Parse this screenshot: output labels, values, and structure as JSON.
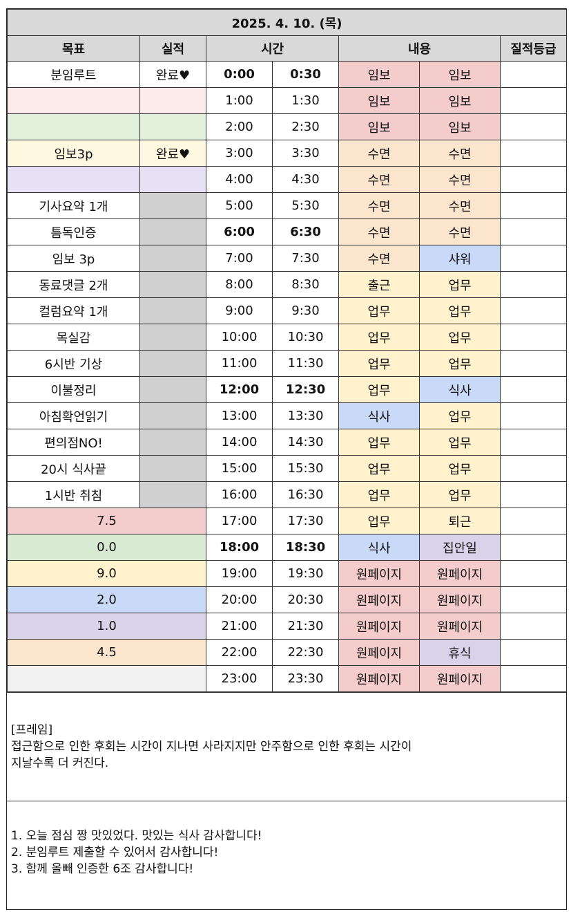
{
  "date": "2025. 4. 10. (목)",
  "headers": {
    "goal": "목표",
    "result": "실적",
    "time": "시간",
    "content": "내용",
    "grade": "질적등급"
  },
  "rows": [
    {
      "goal": "분임루트",
      "result": "완료♥",
      "t1": "0:00",
      "t2": "0:30",
      "c1": "임보",
      "c2": "임보"
    },
    {
      "goal": "",
      "result": "",
      "t1": "1:00",
      "t2": "1:30",
      "c1": "임보",
      "c2": "임보"
    },
    {
      "goal": "",
      "result": "",
      "t1": "2:00",
      "t2": "2:30",
      "c1": "임보",
      "c2": "임보"
    },
    {
      "goal": "임보3p",
      "result": "완료♥",
      "t1": "3:00",
      "t2": "3:30",
      "c1": "수면",
      "c2": "수면"
    },
    {
      "goal": "",
      "result": "",
      "t1": "4:00",
      "t2": "4:30",
      "c1": "수면",
      "c2": "수면"
    },
    {
      "goal": "기사요약 1개",
      "result": "",
      "t1": "5:00",
      "t2": "5:30",
      "c1": "수면",
      "c2": "수면"
    },
    {
      "goal": "틈독인증",
      "result": "",
      "t1": "6:00",
      "t2": "6:30",
      "c1": "수면",
      "c2": "수면"
    },
    {
      "goal": "임보 3p",
      "result": "",
      "t1": "7:00",
      "t2": "7:30",
      "c1": "수면",
      "c2": "샤워"
    },
    {
      "goal": "동료댓글 2개",
      "result": "",
      "t1": "8:00",
      "t2": "8:30",
      "c1": "출근",
      "c2": "업무"
    },
    {
      "goal": "컬럼요약 1개",
      "result": "",
      "t1": "9:00",
      "t2": "9:30",
      "c1": "업무",
      "c2": "업무"
    },
    {
      "goal": "목실감",
      "result": "",
      "t1": "10:00",
      "t2": "10:30",
      "c1": "업무",
      "c2": "업무"
    },
    {
      "goal": "6시반 기상",
      "result": "",
      "t1": "11:00",
      "t2": "11:30",
      "c1": "업무",
      "c2": "업무"
    },
    {
      "goal": "이불정리",
      "result": "",
      "t1": "12:00",
      "t2": "12:30",
      "c1": "업무",
      "c2": "식사"
    },
    {
      "goal": "아침확언읽기",
      "result": "",
      "t1": "13:00",
      "t2": "13:30",
      "c1": "식사",
      "c2": "업무"
    },
    {
      "goal": "편의점NO!",
      "result": "",
      "t1": "14:00",
      "t2": "14:30",
      "c1": "업무",
      "c2": "업무"
    },
    {
      "goal": "20시 식사끝",
      "result": "",
      "t1": "15:00",
      "t2": "15:30",
      "c1": "업무",
      "c2": "업무"
    },
    {
      "goal": "1시반 취침",
      "result": "",
      "t1": "16:00",
      "t2": "16:30",
      "c1": "업무",
      "c2": "업무"
    },
    {
      "summary": "7.5",
      "t1": "17:00",
      "t2": "17:30",
      "c1": "업무",
      "c2": "퇴근"
    },
    {
      "summary": "0.0",
      "t1": "18:00",
      "t2": "18:30",
      "c1": "식사",
      "c2": "집안일"
    },
    {
      "summary": "9.0",
      "t1": "19:00",
      "t2": "19:30",
      "c1": "원페이지",
      "c2": "원페이지"
    },
    {
      "summary": "2.0",
      "t1": "20:00",
      "t2": "20:30",
      "c1": "원페이지",
      "c2": "원페이지"
    },
    {
      "summary": "1.0",
      "t1": "21:00",
      "t2": "21:30",
      "c1": "원페이지",
      "c2": "원페이지"
    },
    {
      "summary": "4.5",
      "t1": "22:00",
      "t2": "22:30",
      "c1": "원페이지",
      "c2": "휴식"
    },
    {
      "summary": "",
      "t1": "23:00",
      "t2": "23:30",
      "c1": "원페이지",
      "c2": "원페이지"
    }
  ],
  "frame": {
    "heading": "[프레임]",
    "line1": "접근함으로 인한 후회는 시간이 지나면 사라지지만 안주함으로 인한 후회는 시간이",
    "line2": "지날수록 더 커진다."
  },
  "gratitude": [
    "1. 오늘 점심 짱 맛있었다. 맛있는 식사 감사합니다!",
    "2. 분임루트 제출할 수 있어서 감사합니다!",
    "3. 함께 올빼 인증한 6조 감사합니다!"
  ],
  "colors": {
    "header_gray": "#d9d9d9",
    "imbo_red": "#f4cccc",
    "sleep_peach": "#fce5cd",
    "work_yellow": "#fff2cc",
    "meal_blue": "#c9daf8",
    "chores_purple": "#d9d2e9",
    "summary_green": "#d9ead3"
  }
}
